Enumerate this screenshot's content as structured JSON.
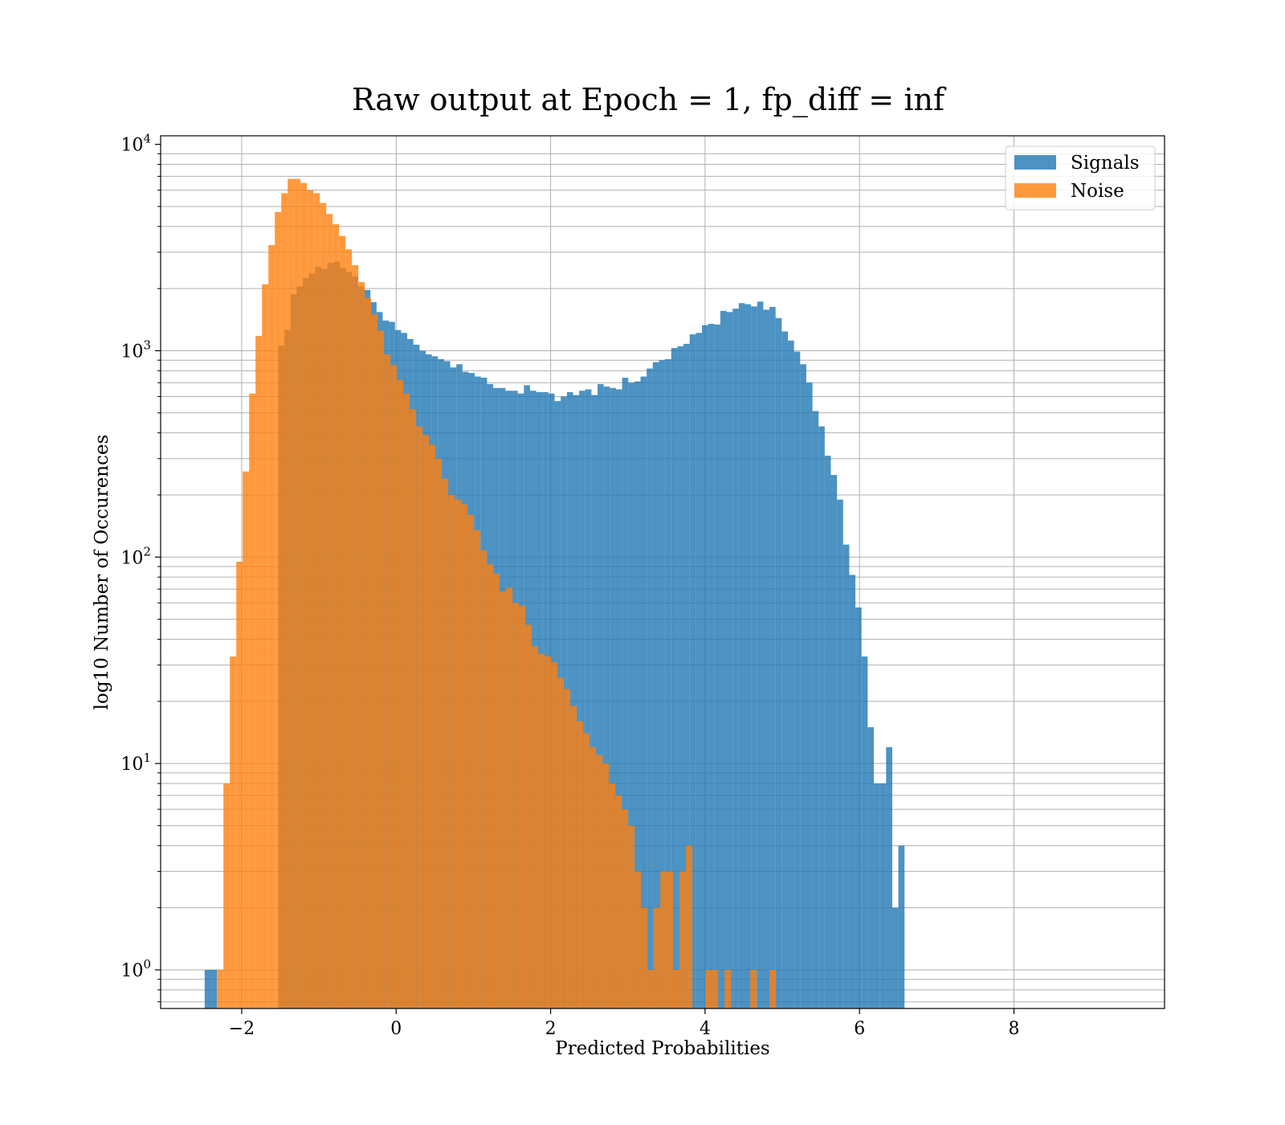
{
  "chart_data": {
    "type": "bar",
    "title": "Raw output at Epoch = 1, fp_diff = inf",
    "xlabel": "Predicted Probabilities",
    "ylabel": "log10 Number of Occurences",
    "xlim": [
      -3.05,
      9.95
    ],
    "ylim": [
      0.65,
      11000
    ],
    "y_scale": "log",
    "grid": true,
    "x_ticks": [
      {
        "value": -2,
        "label": "−2"
      },
      {
        "value": 0,
        "label": "0"
      },
      {
        "value": 2,
        "label": "2"
      },
      {
        "value": 4,
        "label": "4"
      },
      {
        "value": 6,
        "label": "6"
      },
      {
        "value": 8,
        "label": "8"
      }
    ],
    "y_ticks": [
      {
        "value": 1,
        "base": "10",
        "exp": "0"
      },
      {
        "value": 10,
        "base": "10",
        "exp": "1"
      },
      {
        "value": 100,
        "base": "10",
        "exp": "2"
      },
      {
        "value": 1000,
        "base": "10",
        "exp": "3"
      },
      {
        "value": 10000,
        "base": "10",
        "exp": "4"
      }
    ],
    "legend": {
      "position": "top-right"
    },
    "series": [
      {
        "name": "Signals",
        "color": "#1f77b4",
        "opacity": 0.8,
        "bin_start": -2.48,
        "bin_width": 0.0795,
        "values": [
          1,
          1,
          0,
          0,
          0,
          0,
          0,
          0,
          0,
          0,
          0,
          0,
          1060,
          1260,
          1880,
          2050,
          2250,
          2370,
          2550,
          2490,
          2660,
          2700,
          2520,
          2410,
          2290,
          2050,
          1970,
          1720,
          1540,
          1400,
          1380,
          1260,
          1220,
          1140,
          1070,
          1000,
          960,
          940,
          910,
          890,
          830,
          860,
          790,
          780,
          750,
          740,
          690,
          660,
          660,
          640,
          640,
          620,
          680,
          640,
          630,
          630,
          620,
          570,
          600,
          630,
          610,
          640,
          650,
          610,
          690,
          670,
          660,
          650,
          740,
          700,
          710,
          750,
          820,
          880,
          900,
          910,
          1030,
          1050,
          1080,
          1200,
          1220,
          1330,
          1350,
          1340,
          1560,
          1540,
          1600,
          1700,
          1680,
          1640,
          1730,
          1580,
          1630,
          1440,
          1240,
          1120,
          990,
          860,
          700,
          510,
          430,
          310,
          250,
          190,
          115,
          82,
          57,
          33,
          15,
          8,
          8,
          12,
          2,
          4
        ]
      },
      {
        "name": "Noise",
        "color": "#ff7f0e",
        "opacity": 0.8,
        "bin_start": -2.32,
        "bin_width": 0.0832,
        "values": [
          1,
          8,
          33,
          95,
          260,
          620,
          1180,
          2100,
          3250,
          4700,
          5800,
          6800,
          6800,
          6500,
          6000,
          5800,
          5200,
          4600,
          4100,
          3600,
          3100,
          2600,
          2150,
          1800,
          1500,
          1250,
          960,
          850,
          720,
          620,
          520,
          430,
          390,
          350,
          300,
          240,
          200,
          190,
          180,
          160,
          135,
          108,
          92,
          83,
          68,
          71,
          60,
          58,
          47,
          37,
          34,
          33,
          31,
          26,
          23,
          19,
          16,
          14,
          12,
          11,
          10,
          8,
          7,
          6,
          5,
          3,
          2,
          1,
          2,
          3,
          3,
          1,
          3,
          4,
          0,
          0,
          1,
          1,
          0,
          1,
          0,
          0,
          0,
          1,
          0,
          0,
          1
        ]
      }
    ]
  }
}
